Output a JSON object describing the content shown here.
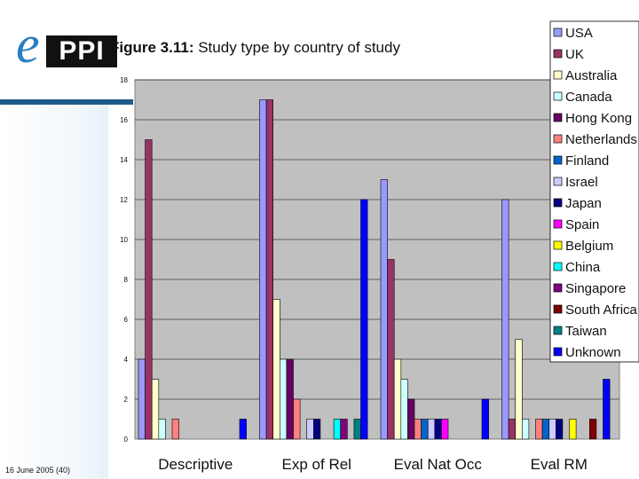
{
  "header": {
    "logo_letter": "e",
    "logo_text": "PPI",
    "figure_label": "Figure 3.11:",
    "figure_title": "Study type by country of study"
  },
  "footer": {
    "date_page": "16 June 2005 (40)"
  },
  "colors": {
    "accent_band": "#1f5a8c",
    "plot_background": "#c0c0c0",
    "series": [
      "#9999ff",
      "#993366",
      "#ffffcc",
      "#ccffff",
      "#660066",
      "#ff8080",
      "#0066cc",
      "#ccccff",
      "#000080",
      "#ff00ff",
      "#ffff00",
      "#00ffff",
      "#800080",
      "#800000",
      "#008080",
      "#0000ff"
    ]
  },
  "chart_data": {
    "type": "bar",
    "title": "",
    "xlabel": "",
    "ylabel": "",
    "ylim": [
      0,
      18
    ],
    "yticks": [
      0,
      2,
      4,
      6,
      8,
      10,
      12,
      14,
      16,
      18
    ],
    "grid": true,
    "legend_position": "top-right",
    "categories": [
      "Descriptive",
      "Exp of Rel",
      "Eval Nat Occ",
      "Eval RM"
    ],
    "series": [
      {
        "name": "USA",
        "values": [
          4,
          17,
          13,
          12
        ]
      },
      {
        "name": "UK",
        "values": [
          15,
          17,
          9,
          1
        ]
      },
      {
        "name": "Australia",
        "values": [
          3,
          7,
          4,
          5
        ]
      },
      {
        "name": "Canada",
        "values": [
          1,
          4,
          3,
          1
        ]
      },
      {
        "name": "Hong Kong",
        "values": [
          0,
          4,
          2,
          0
        ]
      },
      {
        "name": "Netherlands",
        "values": [
          1,
          2,
          1,
          1
        ]
      },
      {
        "name": "Finland",
        "values": [
          0,
          0,
          1,
          1
        ]
      },
      {
        "name": "Israel",
        "values": [
          0,
          1,
          1,
          1
        ]
      },
      {
        "name": "Japan",
        "values": [
          0,
          1,
          1,
          1
        ]
      },
      {
        "name": "Spain",
        "values": [
          0,
          0,
          1,
          0
        ]
      },
      {
        "name": "Belgium",
        "values": [
          0,
          0,
          0,
          1
        ]
      },
      {
        "name": "China",
        "values": [
          0,
          1,
          0,
          0
        ]
      },
      {
        "name": "Singapore",
        "values": [
          0,
          1,
          0,
          0
        ]
      },
      {
        "name": "South Africa",
        "values": [
          0,
          0,
          0,
          1
        ]
      },
      {
        "name": "Taiwan",
        "values": [
          0,
          1,
          0,
          0
        ]
      },
      {
        "name": "Unknown",
        "values": [
          1,
          12,
          2,
          3
        ]
      }
    ]
  }
}
